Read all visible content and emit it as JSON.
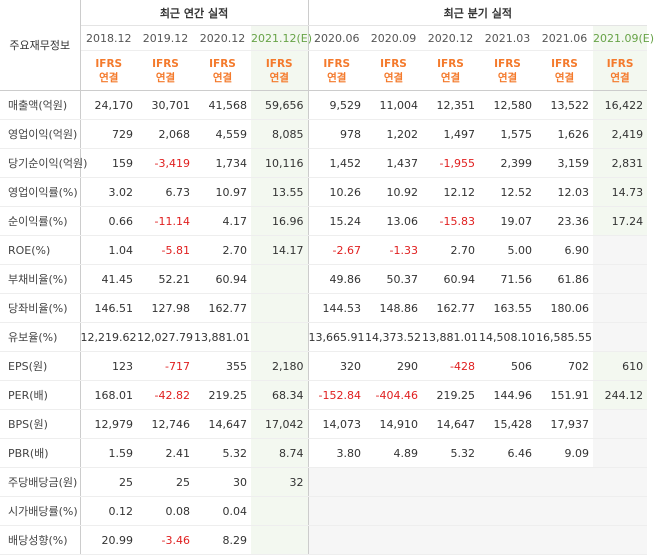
{
  "header": {
    "row_label": "주요재무정보",
    "annual_group": "최근 연간 실적",
    "quarter_group": "최근 분기 실적",
    "periods": [
      "2018.12",
      "2019.12",
      "2020.12",
      "2021.12(E)",
      "2020.06",
      "2020.09",
      "2020.12",
      "2021.03",
      "2021.06",
      "2021.09(E)"
    ],
    "ifrs_top": "IFRS",
    "ifrs_bottom": "연결"
  },
  "rows": [
    {
      "label": "매출액(억원)",
      "values": [
        "24,170",
        "30,701",
        "41,568",
        "59,656",
        "9,529",
        "11,004",
        "12,351",
        "12,580",
        "13,522",
        "16,422"
      ]
    },
    {
      "label": "영업이익(억원)",
      "values": [
        "729",
        "2,068",
        "4,559",
        "8,085",
        "978",
        "1,202",
        "1,497",
        "1,575",
        "1,626",
        "2,419"
      ]
    },
    {
      "label": "당기순이익(억원)",
      "values": [
        "159",
        "-3,419",
        "1,734",
        "10,116",
        "1,452",
        "1,437",
        "-1,955",
        "2,399",
        "3,159",
        "2,831"
      ]
    },
    {
      "label": "영업이익률(%)",
      "values": [
        "3.02",
        "6.73",
        "10.97",
        "13.55",
        "10.26",
        "10.92",
        "12.12",
        "12.52",
        "12.03",
        "14.73"
      ]
    },
    {
      "label": "순이익률(%)",
      "values": [
        "0.66",
        "-11.14",
        "4.17",
        "16.96",
        "15.24",
        "13.06",
        "-15.83",
        "19.07",
        "23.36",
        "17.24"
      ]
    },
    {
      "label": "ROE(%)",
      "values": [
        "1.04",
        "-5.81",
        "2.70",
        "14.17",
        "-2.67",
        "-1.33",
        "2.70",
        "5.00",
        "6.90",
        ""
      ]
    },
    {
      "label": "부채비율(%)",
      "values": [
        "41.45",
        "52.21",
        "60.94",
        "",
        "49.86",
        "50.37",
        "60.94",
        "71.56",
        "61.86",
        ""
      ]
    },
    {
      "label": "당좌비율(%)",
      "values": [
        "146.51",
        "127.98",
        "162.77",
        "",
        "144.53",
        "148.86",
        "162.77",
        "163.55",
        "180.06",
        ""
      ]
    },
    {
      "label": "유보율(%)",
      "values": [
        "12,219.62",
        "12,027.79",
        "13,881.01",
        "",
        "13,665.91",
        "14,373.52",
        "13,881.01",
        "14,508.10",
        "16,585.55",
        ""
      ]
    },
    {
      "label": "EPS(원)",
      "values": [
        "123",
        "-717",
        "355",
        "2,180",
        "320",
        "290",
        "-428",
        "506",
        "702",
        "610"
      ]
    },
    {
      "label": "PER(배)",
      "values": [
        "168.01",
        "-42.82",
        "219.25",
        "68.34",
        "-152.84",
        "-404.46",
        "219.25",
        "144.96",
        "151.91",
        "244.12"
      ]
    },
    {
      "label": "BPS(원)",
      "values": [
        "12,979",
        "12,746",
        "14,647",
        "17,042",
        "14,073",
        "14,910",
        "14,647",
        "15,428",
        "17,937",
        ""
      ]
    },
    {
      "label": "PBR(배)",
      "values": [
        "1.59",
        "2.41",
        "5.32",
        "8.74",
        "3.80",
        "4.89",
        "5.32",
        "6.46",
        "9.09",
        ""
      ]
    },
    {
      "label": "주당배당금(원)",
      "values": [
        "25",
        "25",
        "30",
        "32",
        "",
        "",
        "",
        "",
        "",
        ""
      ]
    },
    {
      "label": "시가배당률(%)",
      "values": [
        "0.12",
        "0.08",
        "0.04",
        "",
        "",
        "",
        "",
        "",
        "",
        ""
      ]
    },
    {
      "label": "배당성향(%)",
      "values": [
        "20.99",
        "-3.46",
        "8.29",
        "",
        "",
        "",
        "",
        "",
        "",
        ""
      ]
    }
  ],
  "colors": {
    "negative": "#e02020",
    "ifrs": "#f47a2c",
    "estimate_bg": "#f3f8f0",
    "empty_bg": "#f6f6f6"
  }
}
